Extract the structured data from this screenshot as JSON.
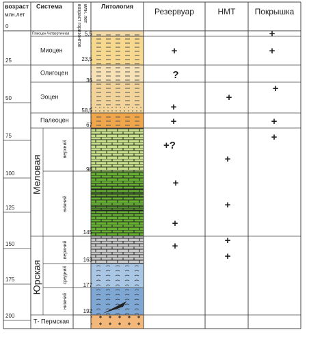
{
  "header": {
    "age": [
      "возраст",
      "млн.лет"
    ],
    "system": "Система",
    "horizon_age": [
      "возраст горизонтов",
      "млн. лет"
    ],
    "lithology": "Литология",
    "reservoir": "Резервуар",
    "nmt": "НМТ",
    "seal": "Покрышка"
  },
  "age_ticks": [
    "0",
    "25",
    "50",
    "75",
    "100",
    "125",
    "150",
    "175",
    "200"
  ],
  "systems": [
    {
      "name": "Плиоцен-Четвертичная"
    },
    {
      "name": "Миоцен"
    },
    {
      "name": "Олигоцен"
    },
    {
      "name": "Эоцен"
    },
    {
      "name": "Палеоцен"
    },
    {
      "name": "Меловая",
      "parts": [
        "верхний",
        "нижний"
      ]
    },
    {
      "name": "Юрская",
      "parts": [
        "верхний",
        "средний",
        "нижний"
      ]
    },
    {
      "name": "Т- Пермская"
    }
  ],
  "horizons": [
    "5,5",
    "23,5",
    "36",
    "58,5",
    "67",
    "98",
    "145",
    "163",
    "177",
    "192"
  ],
  "reservoir": [
    "+",
    "?",
    "+",
    "+",
    "+?",
    "+",
    "+",
    "+"
  ],
  "nmt": [
    "+",
    "+",
    "+",
    "+",
    "+"
  ],
  "seal": [
    "+",
    "+",
    "+",
    "+",
    "+"
  ]
}
